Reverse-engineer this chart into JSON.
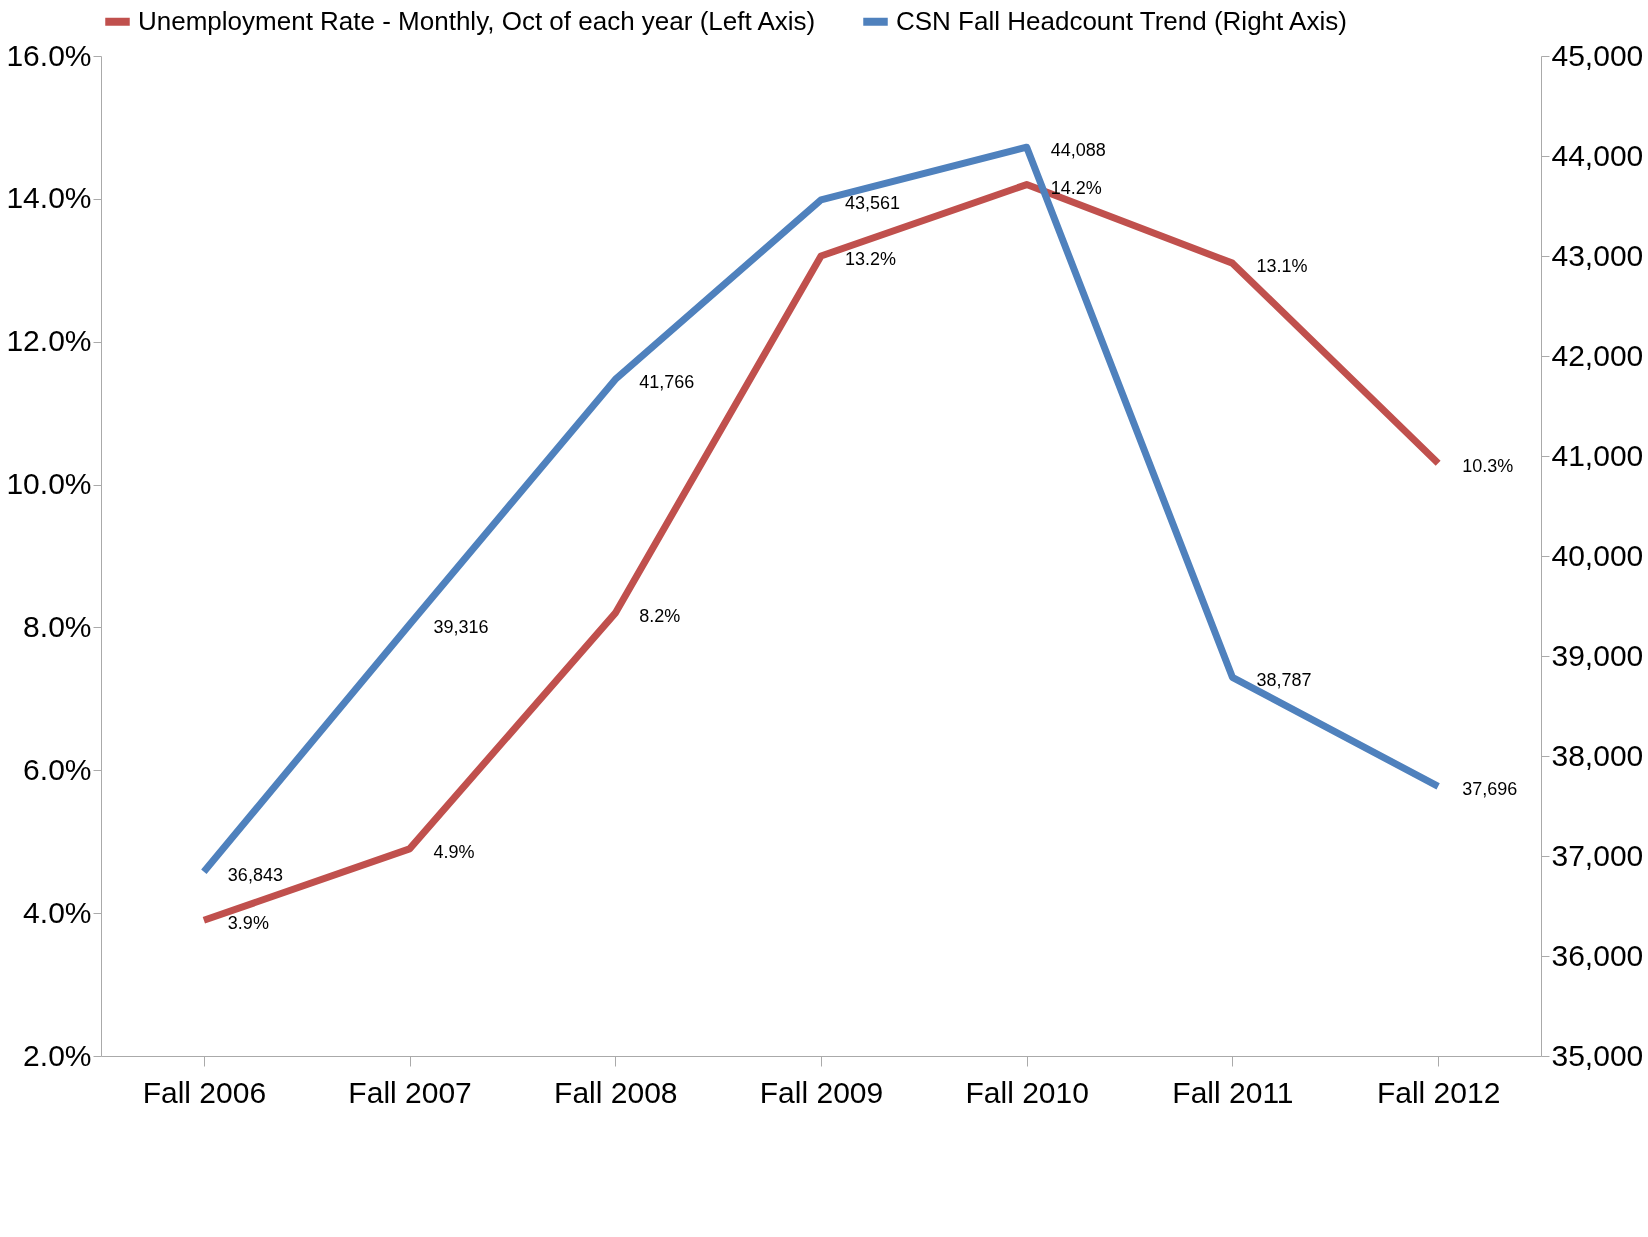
{
  "chart_data": {
    "type": "line",
    "categories": [
      "Fall 2006",
      "Fall 2007",
      "Fall 2008",
      "Fall 2009",
      "Fall 2010",
      "Fall 2011",
      "Fall 2012"
    ],
    "series": [
      {
        "name": "Unemployment Rate - Monthly, Oct of each year (Left Axis)",
        "color": "#c0504d",
        "values": [
          3.9,
          4.9,
          8.2,
          13.2,
          14.2,
          13.1,
          10.3
        ],
        "value_labels": [
          "3.9%",
          "4.9%",
          "8.2%",
          "13.2%",
          "14.2%",
          "13.1%",
          "10.3%"
        ]
      },
      {
        "name": "CSN Fall Headcount Trend (Right Axis)",
        "color": "#4f81bd",
        "axis": "y2",
        "values": [
          36843,
          39316,
          41766,
          43561,
          44088,
          38787,
          37696
        ],
        "value_labels": [
          "36,843",
          "39,316",
          "41,766",
          "43,561",
          "44,088",
          "38,787",
          "37,696"
        ]
      }
    ],
    "ylim": [
      2,
      16
    ],
    "yticks": [
      {
        "value": 2,
        "label": "2.0%"
      },
      {
        "value": 4,
        "label": "4.0%"
      },
      {
        "value": 6,
        "label": "6.0%"
      },
      {
        "value": 8,
        "label": "8.0%"
      },
      {
        "value": 10,
        "label": "10.0%"
      },
      {
        "value": 12,
        "label": "12.0%"
      },
      {
        "value": 14,
        "label": "14.0%"
      },
      {
        "value": 16,
        "label": "16.0%"
      }
    ],
    "y2lim": [
      35000,
      45000
    ],
    "y2ticks": [
      {
        "value": 35000,
        "label": "35,000"
      },
      {
        "value": 36000,
        "label": "36,000"
      },
      {
        "value": 37000,
        "label": "37,000"
      },
      {
        "value": 38000,
        "label": "38,000"
      },
      {
        "value": 39000,
        "label": "39,000"
      },
      {
        "value": 40000,
        "label": "40,000"
      },
      {
        "value": 41000,
        "label": "41,000"
      },
      {
        "value": 42000,
        "label": "42,000"
      },
      {
        "value": 43000,
        "label": "43,000"
      },
      {
        "value": 44000,
        "label": "44,000"
      },
      {
        "value": 45000,
        "label": "45,000"
      }
    ],
    "legend": "top"
  }
}
